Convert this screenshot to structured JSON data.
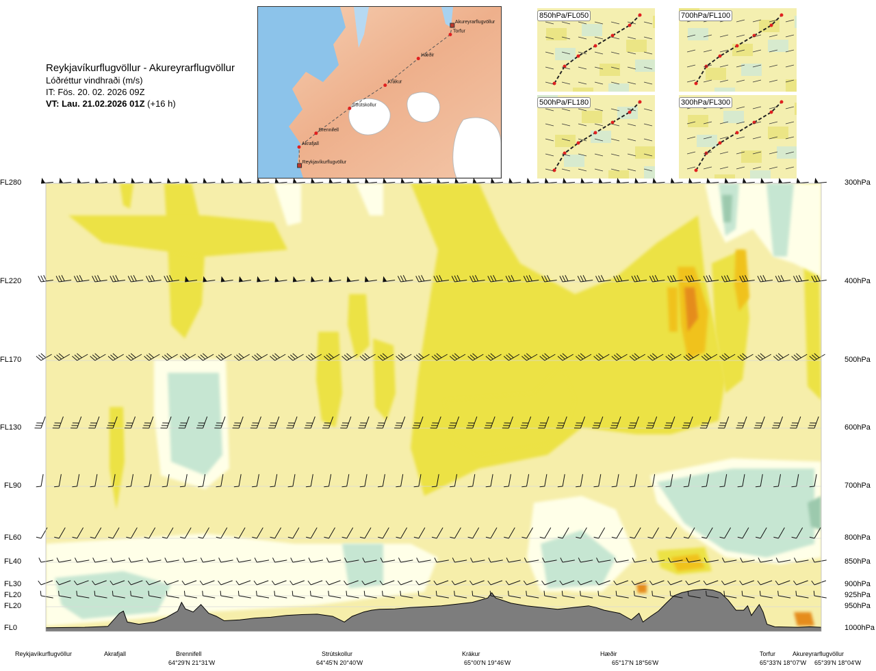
{
  "header": {
    "route_title": "Reykjavíkurflugvöllur - Akureyrarflugvöllur",
    "product": "Lóðréttur vindhraði (m/s)",
    "issue_time": "IT: Fös. 20. 02. 2026 09Z",
    "valid_time_bold": "VT: Lau. 21.02.2026 01Z",
    "valid_offset": "(+16 h)"
  },
  "route_map": {
    "waypoints": [
      {
        "name": "Akureyrarflugvöllur",
        "lon": -18.07,
        "lat": 65.65
      },
      {
        "name": "Torfur",
        "lon": -18.12,
        "lat": 65.55
      },
      {
        "name": "Hæðir",
        "lon": -18.93,
        "lat": 65.29
      },
      {
        "name": "Krákur",
        "lon": -19.77,
        "lat": 65.0
      },
      {
        "name": "Strútskollur",
        "lon": -20.67,
        "lat": 64.75
      },
      {
        "name": "Brennifell",
        "lon": -21.52,
        "lat": 64.48
      },
      {
        "name": "Akrafjall",
        "lon": -21.95,
        "lat": 64.33
      },
      {
        "name": "Reykjavíkurflugvöllur",
        "lon": -21.94,
        "lat": 64.13
      }
    ]
  },
  "level_panels": [
    {
      "label": "850hPa/FL050"
    },
    {
      "label": "700hPa/FL100"
    },
    {
      "label": "500hPa/FL180"
    },
    {
      "label": "300hPa/FL300"
    }
  ],
  "chart_data": {
    "type": "heatmap",
    "title": "Reykjavíkurflugvöllur - Akureyrarflugvöllur",
    "variable": "Lóðréttur vindhraði (m/s)",
    "colors": {
      "strong_down": "#9cc9ad",
      "moderate_down": "#c6e6d2",
      "weak_down": "#ffffe8",
      "neutral": "#f6eeaa",
      "weak_up": "#ece244",
      "moderate_up": "#f0c21c",
      "strong_up": "#e58c1e",
      "terrain": "#7d7d7d"
    },
    "left_axis_flight_levels": [
      {
        "label": "FL280",
        "p": 300
      },
      {
        "label": "FL220",
        "p": 400
      },
      {
        "label": "FL170",
        "p": 500
      },
      {
        "label": "FL130",
        "p": 600
      },
      {
        "label": "FL90",
        "p": 700
      },
      {
        "label": "FL60",
        "p": 800
      },
      {
        "label": "FL40",
        "p": 850
      },
      {
        "label": "FL30",
        "p": 900
      },
      {
        "label": "FL20",
        "p": 925
      },
      {
        "label": "FL20",
        "p": 950
      },
      {
        "label": "FL0",
        "p": 1000
      }
    ],
    "right_axis_pressure": [
      "300hPa",
      "400hPa",
      "500hPa",
      "600hPa",
      "700hPa",
      "800hPa",
      "850hPa",
      "900hPa",
      "925hPa",
      "950hPa",
      "1000hPa"
    ],
    "pressure_levels": [
      300,
      400,
      500,
      600,
      700,
      800,
      850,
      900,
      925,
      950,
      1000
    ],
    "x_range": [
      0,
      1
    ],
    "x_places": [
      {
        "name": "Reykjavíkurflugvöllur",
        "x": 0.0,
        "coord": ""
      },
      {
        "name": "Akrafjall",
        "x": 0.08,
        "coord": ""
      },
      {
        "name": "Brennifell",
        "x": 0.19,
        "coord": "64°29'N 21°31'W"
      },
      {
        "name": "Strútskollur",
        "x": 0.38,
        "coord": "64°45'N 20°40'W"
      },
      {
        "name": "Krákur",
        "x": 0.55,
        "coord": "65°00'N 19°46'W"
      },
      {
        "name": "Hæðir",
        "x": 0.73,
        "coord": "65°17'N 18°56'W"
      },
      {
        "name": "Torfur",
        "x": 0.93,
        "coord": "65°33'N 18°07'W"
      },
      {
        "name": "Akureyrarflugvöllur",
        "x": 0.985,
        "coord": "65°39'N 18°04'W"
      }
    ],
    "terrain_pressure_hPa": [
      [
        0.0,
        998
      ],
      [
        0.05,
        997
      ],
      [
        0.08,
        995
      ],
      [
        0.095,
        965
      ],
      [
        0.1,
        960
      ],
      [
        0.105,
        985
      ],
      [
        0.12,
        990
      ],
      [
        0.14,
        985
      ],
      [
        0.155,
        975
      ],
      [
        0.17,
        960
      ],
      [
        0.175,
        940
      ],
      [
        0.18,
        955
      ],
      [
        0.19,
        962
      ],
      [
        0.2,
        945
      ],
      [
        0.21,
        965
      ],
      [
        0.22,
        972
      ],
      [
        0.23,
        982
      ],
      [
        0.25,
        980
      ],
      [
        0.27,
        976
      ],
      [
        0.29,
        974
      ],
      [
        0.31,
        970
      ],
      [
        0.33,
        968
      ],
      [
        0.35,
        967
      ],
      [
        0.37,
        972
      ],
      [
        0.385,
        985
      ],
      [
        0.395,
        972
      ],
      [
        0.41,
        962
      ],
      [
        0.42,
        958
      ],
      [
        0.43,
        956
      ],
      [
        0.45,
        955
      ],
      [
        0.47,
        952
      ],
      [
        0.49,
        950
      ],
      [
        0.51,
        948
      ],
      [
        0.53,
        944
      ],
      [
        0.55,
        940
      ],
      [
        0.57,
        930
      ],
      [
        0.575,
        918
      ],
      [
        0.58,
        930
      ],
      [
        0.6,
        942
      ],
      [
        0.62,
        948
      ],
      [
        0.64,
        952
      ],
      [
        0.66,
        956
      ],
      [
        0.68,
        952
      ],
      [
        0.7,
        948
      ],
      [
        0.71,
        952
      ],
      [
        0.72,
        958
      ],
      [
        0.74,
        965
      ],
      [
        0.75,
        975
      ],
      [
        0.755,
        980
      ],
      [
        0.765,
        965
      ],
      [
        0.77,
        985
      ],
      [
        0.78,
        972
      ],
      [
        0.79,
        960
      ],
      [
        0.8,
        942
      ],
      [
        0.81,
        925
      ],
      [
        0.82,
        918
      ],
      [
        0.835,
        912
      ],
      [
        0.85,
        910
      ],
      [
        0.86,
        912
      ],
      [
        0.87,
        918
      ],
      [
        0.88,
        935
      ],
      [
        0.89,
        958
      ],
      [
        0.9,
        958
      ],
      [
        0.905,
        948
      ],
      [
        0.91,
        970
      ],
      [
        0.92,
        945
      ],
      [
        0.925,
        962
      ],
      [
        0.93,
        990
      ],
      [
        0.94,
        996
      ],
      [
        0.97,
        997
      ],
      [
        0.985,
        996
      ],
      [
        1.0,
        997
      ]
    ],
    "wind_barbs": "rows of wind barbs at FL280, FL220, FL170, FL130, FL90, FL60, FL40, FL30, FL20 along the route"
  }
}
